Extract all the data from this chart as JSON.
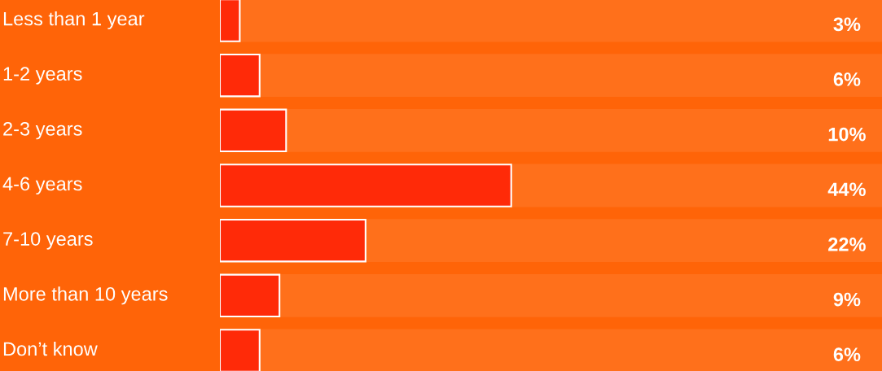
{
  "chart_data": {
    "type": "bar",
    "orientation": "horizontal",
    "categories": [
      "Less than 1 year",
      "1-2 years",
      "2-3 years",
      "4-6 years",
      "7-10 years",
      "More than 10 years",
      "Don’t know"
    ],
    "values": [
      3,
      6,
      10,
      44,
      22,
      9,
      6
    ],
    "value_labels": [
      "3%",
      "6%",
      "10%",
      "44%",
      "22%",
      "9%",
      "6%"
    ],
    "color": "#ff2a08",
    "xlim": [
      0,
      100
    ]
  }
}
